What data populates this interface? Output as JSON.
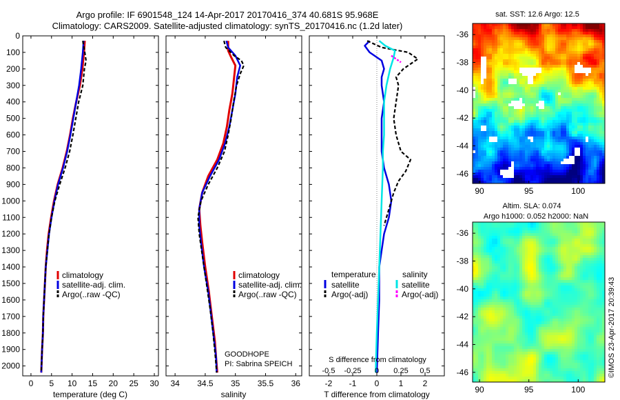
{
  "header": {
    "line1": "Argo profile: IF 6901548_124 14-Apr-2017 20170416_374 40.681S 95.968E",
    "line2": "Climatology: CARS2009. Satellite-adjusted climatology: synTS_20170416.nc (1.2d later)"
  },
  "colors": {
    "climatology": "#e00000",
    "satellite": "#0000e0",
    "argo": "#000000",
    "sal_satellite": "#00e5e5",
    "sal_argo": "#ff00ff"
  },
  "chart_data": [
    {
      "id": "temperature",
      "type": "line",
      "xlabel": "temperature (deg C)",
      "ylabel": "",
      "xlim": [
        -2,
        31
      ],
      "ylim": [
        2060,
        0
      ],
      "xticks": [
        0,
        5,
        10,
        15,
        20,
        25,
        30
      ],
      "yticks": [
        0,
        100,
        200,
        300,
        400,
        500,
        600,
        700,
        800,
        900,
        1000,
        1100,
        1200,
        1300,
        1400,
        1500,
        1600,
        1700,
        1800,
        1900,
        2000
      ],
      "legend": {
        "placement": "lower-center",
        "entries": [
          "climatology",
          "satellite-adj. clim.",
          "Argo(..raw -QC)"
        ]
      },
      "series": [
        {
          "name": "climatology",
          "style": "red",
          "points": [
            [
              13.1,
              30
            ],
            [
              12.9,
              100
            ],
            [
              12.5,
              200
            ],
            [
              11.9,
              300
            ],
            [
              11.0,
              400
            ],
            [
              10.2,
              500
            ],
            [
              9.5,
              600
            ],
            [
              8.7,
              700
            ],
            [
              7.7,
              800
            ],
            [
              6.5,
              900
            ],
            [
              5.6,
              1000
            ],
            [
              4.9,
              1100
            ],
            [
              4.3,
              1200
            ],
            [
              3.9,
              1300
            ],
            [
              3.6,
              1400
            ],
            [
              3.4,
              1500
            ],
            [
              3.2,
              1600
            ],
            [
              3.0,
              1700
            ],
            [
              2.9,
              1800
            ],
            [
              2.7,
              1900
            ],
            [
              2.5,
              2040
            ]
          ]
        },
        {
          "name": "satellite-adj. clim.",
          "style": "blue",
          "points": [
            [
              12.8,
              30
            ],
            [
              12.6,
              100
            ],
            [
              12.2,
              200
            ],
            [
              11.7,
              300
            ],
            [
              11.0,
              400
            ],
            [
              10.3,
              500
            ],
            [
              9.6,
              600
            ],
            [
              8.8,
              700
            ],
            [
              7.8,
              800
            ],
            [
              6.6,
              900
            ],
            [
              5.7,
              1000
            ],
            [
              5.0,
              1100
            ],
            [
              4.4,
              1200
            ],
            [
              4.0,
              1300
            ],
            [
              3.6,
              1400
            ],
            [
              3.4,
              1500
            ],
            [
              3.2,
              1600
            ],
            [
              3.0,
              1700
            ],
            [
              2.9,
              1800
            ],
            [
              2.7,
              1900
            ],
            [
              2.5,
              2040
            ]
          ]
        },
        {
          "name": "Argo(..raw -QC)",
          "style": "black-dash",
          "points": [
            [
              12.6,
              30
            ],
            [
              13.1,
              100
            ],
            [
              13.4,
              150
            ],
            [
              13.0,
              200
            ],
            [
              12.6,
              300
            ],
            [
              11.6,
              400
            ],
            [
              10.9,
              500
            ],
            [
              10.2,
              600
            ],
            [
              9.4,
              700
            ],
            [
              8.3,
              800
            ],
            [
              7.0,
              900
            ],
            [
              5.8,
              1000
            ],
            [
              5.0,
              1100
            ],
            [
              4.4,
              1200
            ],
            [
              4.0,
              1300
            ],
            [
              3.6,
              1400
            ],
            [
              3.4,
              1500
            ],
            [
              3.2,
              1600
            ],
            [
              3.0,
              1700
            ],
            [
              2.9,
              1800
            ],
            [
              2.7,
              1900
            ],
            [
              2.5,
              2040
            ]
          ]
        }
      ]
    },
    {
      "id": "salinity",
      "type": "line",
      "xlabel": "salinity",
      "ylabel": "",
      "xlim": [
        33.85,
        36.1
      ],
      "ylim": [
        2060,
        0
      ],
      "xticks": [
        34,
        34.5,
        35,
        35.5,
        36
      ],
      "legend": {
        "placement": "lower-right",
        "entries": [
          "climatology",
          "satellite-adj. clim.",
          "Argo(..raw -QC)"
        ]
      },
      "annotation": [
        "GOODHOPE",
        "PI: Sabrina SPEICH"
      ],
      "series": [
        {
          "name": "climatology",
          "style": "red",
          "points": [
            [
              34.88,
              30
            ],
            [
              34.88,
              90
            ],
            [
              34.93,
              130
            ],
            [
              35.0,
              180
            ],
            [
              34.98,
              250
            ],
            [
              34.95,
              350
            ],
            [
              34.9,
              450
            ],
            [
              34.86,
              550
            ],
            [
              34.8,
              650
            ],
            [
              34.7,
              750
            ],
            [
              34.55,
              850
            ],
            [
              34.45,
              950
            ],
            [
              34.4,
              1050
            ],
            [
              34.42,
              1150
            ],
            [
              34.45,
              1250
            ],
            [
              34.5,
              1400
            ],
            [
              34.56,
              1550
            ],
            [
              34.61,
              1700
            ],
            [
              34.66,
              1850
            ],
            [
              34.68,
              1950
            ],
            [
              34.7,
              2040
            ]
          ]
        },
        {
          "name": "satellite-adj. clim.",
          "style": "blue",
          "points": [
            [
              34.85,
              30
            ],
            [
              34.88,
              70
            ],
            [
              35.0,
              120
            ],
            [
              35.08,
              180
            ],
            [
              35.03,
              250
            ],
            [
              35.0,
              350
            ],
            [
              34.95,
              450
            ],
            [
              34.9,
              550
            ],
            [
              34.83,
              650
            ],
            [
              34.73,
              750
            ],
            [
              34.58,
              850
            ],
            [
              34.45,
              950
            ],
            [
              34.4,
              1050
            ],
            [
              34.4,
              1150
            ],
            [
              34.43,
              1250
            ],
            [
              34.48,
              1400
            ],
            [
              34.55,
              1550
            ],
            [
              34.6,
              1700
            ],
            [
              34.65,
              1850
            ],
            [
              34.68,
              1950
            ],
            [
              34.69,
              2040
            ]
          ]
        },
        {
          "name": "Argo(..raw -QC)",
          "style": "black-dash",
          "points": [
            [
              34.81,
              30
            ],
            [
              34.84,
              70
            ],
            [
              34.98,
              120
            ],
            [
              35.1,
              150
            ],
            [
              35.14,
              180
            ],
            [
              35.08,
              230
            ],
            [
              35.02,
              300
            ],
            [
              34.97,
              400
            ],
            [
              34.93,
              500
            ],
            [
              34.88,
              600
            ],
            [
              34.82,
              700
            ],
            [
              34.7,
              800
            ],
            [
              34.55,
              900
            ],
            [
              34.43,
              1000
            ],
            [
              34.38,
              1100
            ],
            [
              34.4,
              1200
            ],
            [
              34.46,
              1350
            ],
            [
              34.52,
              1500
            ],
            [
              34.58,
              1650
            ],
            [
              34.63,
              1800
            ],
            [
              34.67,
              1950
            ],
            [
              34.69,
              2040
            ]
          ]
        }
      ]
    },
    {
      "id": "difference",
      "type": "line",
      "xlabel": "T difference from climatology",
      "xlabel_top": "S difference from climatology",
      "xlim": [
        -2.8,
        2.8
      ],
      "ylim": [
        2060,
        0
      ],
      "xticks": [
        -2,
        -1,
        0,
        1,
        2
      ],
      "s_ticks": [
        "-0.5",
        "-0.25",
        "0",
        "0.25",
        "0.5"
      ],
      "legend": {
        "placement": "lower-center",
        "temperature_title": "temperature",
        "salinity_title": "salinity",
        "entries": [
          "satellite",
          "Argo(-adj)",
          "satellite",
          "Argo(-adj)"
        ]
      },
      "series": [
        {
          "name": "T satellite",
          "style": "blue",
          "points": [
            [
              -0.3,
              30
            ],
            [
              -0.5,
              60
            ],
            [
              -0.3,
              100
            ],
            [
              0.2,
              150
            ],
            [
              0.3,
              200
            ],
            [
              0.2,
              250
            ],
            [
              0.2,
              300
            ],
            [
              0.3,
              400
            ],
            [
              0.2,
              500
            ],
            [
              0.2,
              600
            ],
            [
              0.2,
              700
            ],
            [
              0.3,
              800
            ],
            [
              0.5,
              900
            ],
            [
              0.6,
              1000
            ],
            [
              0.5,
              1100
            ],
            [
              0.3,
              1200
            ],
            [
              0.2,
              1300
            ],
            [
              0.1,
              1400
            ],
            [
              0.1,
              1600
            ],
            [
              0.05,
              1800
            ],
            [
              0.0,
              2040
            ]
          ]
        },
        {
          "name": "T Argo(-adj)",
          "style": "black-dash",
          "points": [
            [
              -0.4,
              30
            ],
            [
              0.2,
              70
            ],
            [
              1.3,
              100
            ],
            [
              1.7,
              140
            ],
            [
              1.1,
              200
            ],
            [
              0.8,
              250
            ],
            [
              0.9,
              300
            ],
            [
              0.8,
              400
            ],
            [
              0.7,
              500
            ],
            [
              0.8,
              600
            ],
            [
              1.0,
              700
            ],
            [
              1.4,
              750
            ],
            [
              1.2,
              820
            ],
            [
              0.9,
              880
            ],
            [
              0.7,
              950
            ],
            [
              0.5,
              1050
            ],
            [
              0.3,
              1150
            ]
          ]
        },
        {
          "name": "S satellite",
          "style": "cyan",
          "points": [
            [
              0.1,
              30
            ],
            [
              0.35,
              60
            ],
            [
              0.75,
              90
            ],
            [
              0.7,
              130
            ],
            [
              0.55,
              200
            ],
            [
              0.4,
              300
            ],
            [
              0.3,
              400
            ],
            [
              0.3,
              500
            ],
            [
              0.3,
              600
            ],
            [
              0.25,
              700
            ],
            [
              0.25,
              800
            ],
            [
              0.2,
              1000
            ],
            [
              0.15,
              1200
            ],
            [
              0.1,
              1400
            ],
            [
              0.05,
              1600
            ],
            [
              0.0,
              1800
            ],
            [
              -0.05,
              2040
            ]
          ]
        },
        {
          "name": "S Argo(-adj)",
          "style": "magenta-dash",
          "points": [
            [
              0.6,
              120
            ],
            [
              1.0,
              160
            ]
          ]
        }
      ]
    },
    {
      "id": "sst_map",
      "type": "heatmap",
      "title": "sat. SST: 12.6 Argo: 12.5",
      "xticks": [
        90,
        95,
        100
      ],
      "yticks": [
        -36,
        -38,
        -40,
        -42,
        -44,
        -46
      ],
      "xlim": [
        89.3,
        102.7
      ],
      "ylim": [
        -46.7,
        -35.2
      ]
    },
    {
      "id": "sla_map",
      "type": "heatmap",
      "title": "Altim. SLA: 0.074",
      "subtitle": "Argo h1000: 0.052 h2000: NaN",
      "xticks": [
        90,
        95,
        100
      ],
      "yticks": [
        -36,
        -38,
        -40,
        -42,
        -44,
        -46
      ],
      "xlim": [
        89.3,
        102.7
      ],
      "ylim": [
        -46.7,
        -35.2
      ]
    }
  ],
  "credit": "©IMOS 23-Apr-2017 20:39:43"
}
